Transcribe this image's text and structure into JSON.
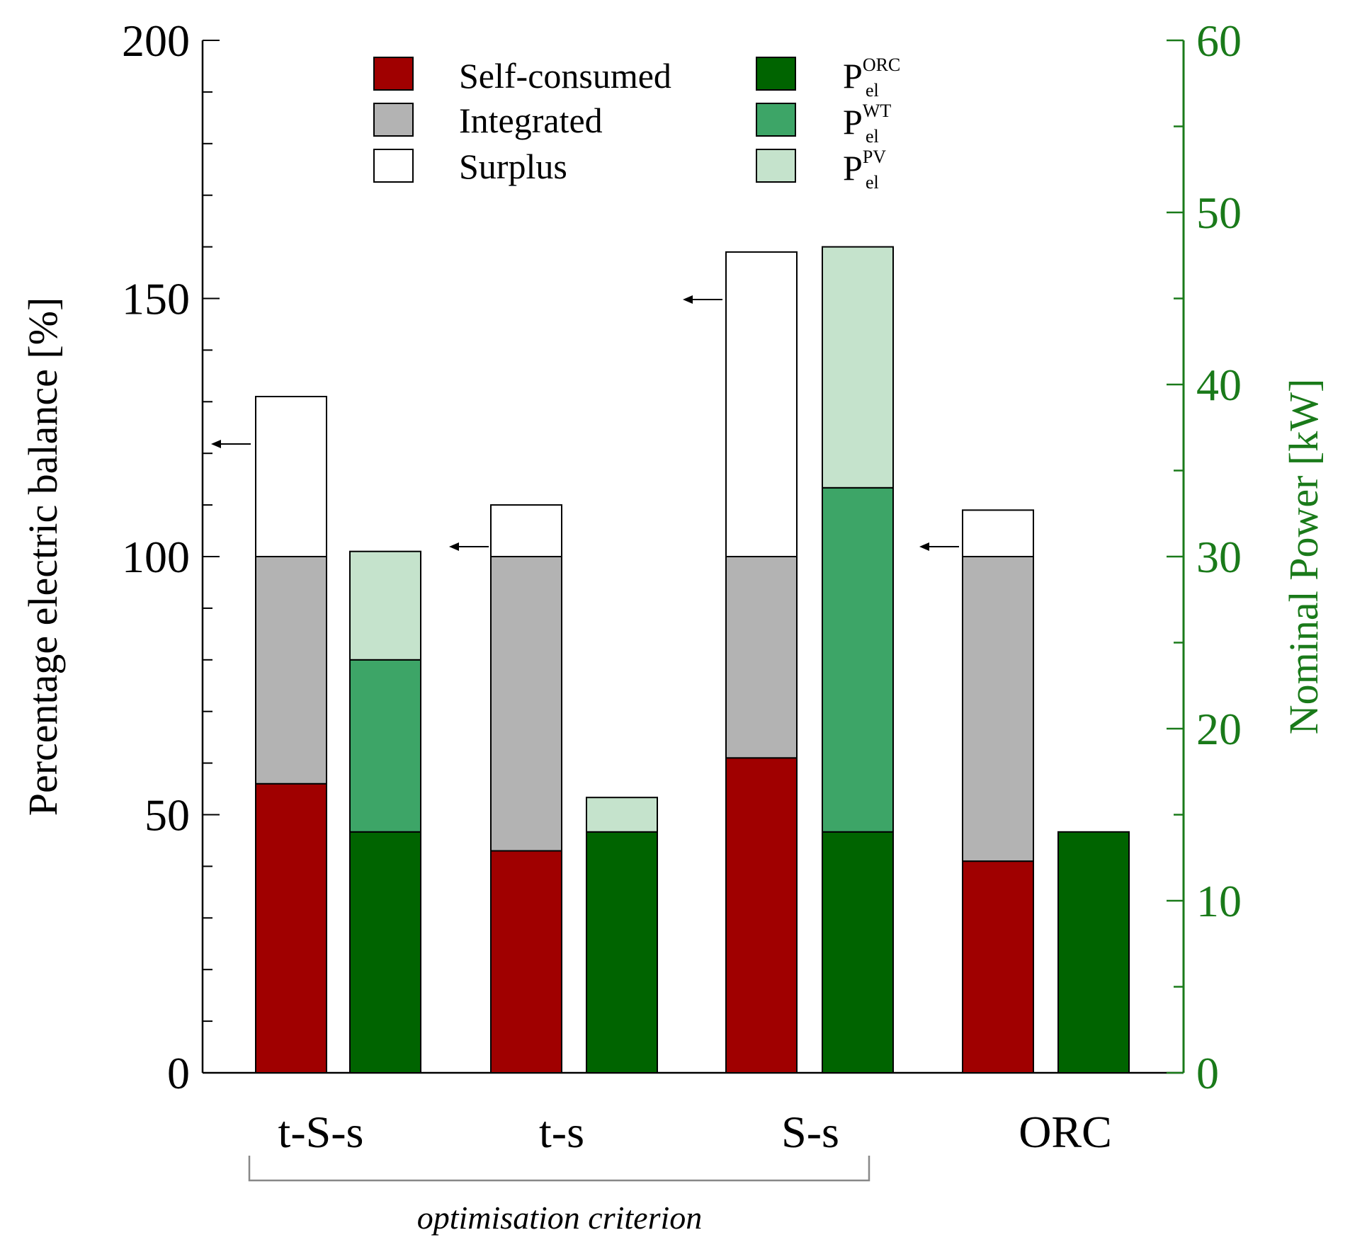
{
  "chart_data": {
    "type": "bar",
    "subtype": "stacked-grouped-dual-axis",
    "categories": [
      "t-S-s",
      "t-s",
      "S-s",
      "ORC"
    ],
    "left_axis": {
      "label": "Percentage electric balance [%]",
      "range": [
        0,
        200
      ],
      "major_ticks": [
        0,
        50,
        100,
        150,
        200
      ],
      "minor_step": 10,
      "color": "#000000"
    },
    "right_axis": {
      "label": "Nominal Power [kW]",
      "range": [
        0,
        60
      ],
      "major_ticks": [
        0,
        10,
        20,
        30,
        40,
        50,
        60
      ],
      "minor_step": 5,
      "color": "#1a7a1a"
    },
    "balance_series": [
      {
        "name": "Self-consumed",
        "color": "#a00000",
        "values": [
          56,
          43,
          61,
          41
        ]
      },
      {
        "name": "Integrated",
        "color": "#b3b3b3",
        "values": [
          44,
          57,
          39,
          59
        ]
      },
      {
        "name": "Surplus",
        "color": "#ffffff",
        "values": [
          31,
          10,
          59,
          9
        ]
      }
    ],
    "power_series": [
      {
        "name": "P",
        "sub": "el",
        "sup": "ORC",
        "color": "#006400",
        "values": [
          14,
          14,
          14,
          14
        ]
      },
      {
        "name": "P",
        "sub": "el",
        "sup": "WT",
        "color": "#3da567",
        "values": [
          10,
          0,
          20,
          0
        ]
      },
      {
        "name": "P",
        "sub": "el",
        "sup": "PV",
        "color": "#c5e3cc",
        "values": [
          6.3,
          2,
          14,
          0
        ]
      }
    ],
    "bracket": {
      "label": "optimisation criterion",
      "categories": [
        "t-S-s",
        "t-s",
        "S-s"
      ]
    },
    "arrows_point_to": "left axis"
  }
}
